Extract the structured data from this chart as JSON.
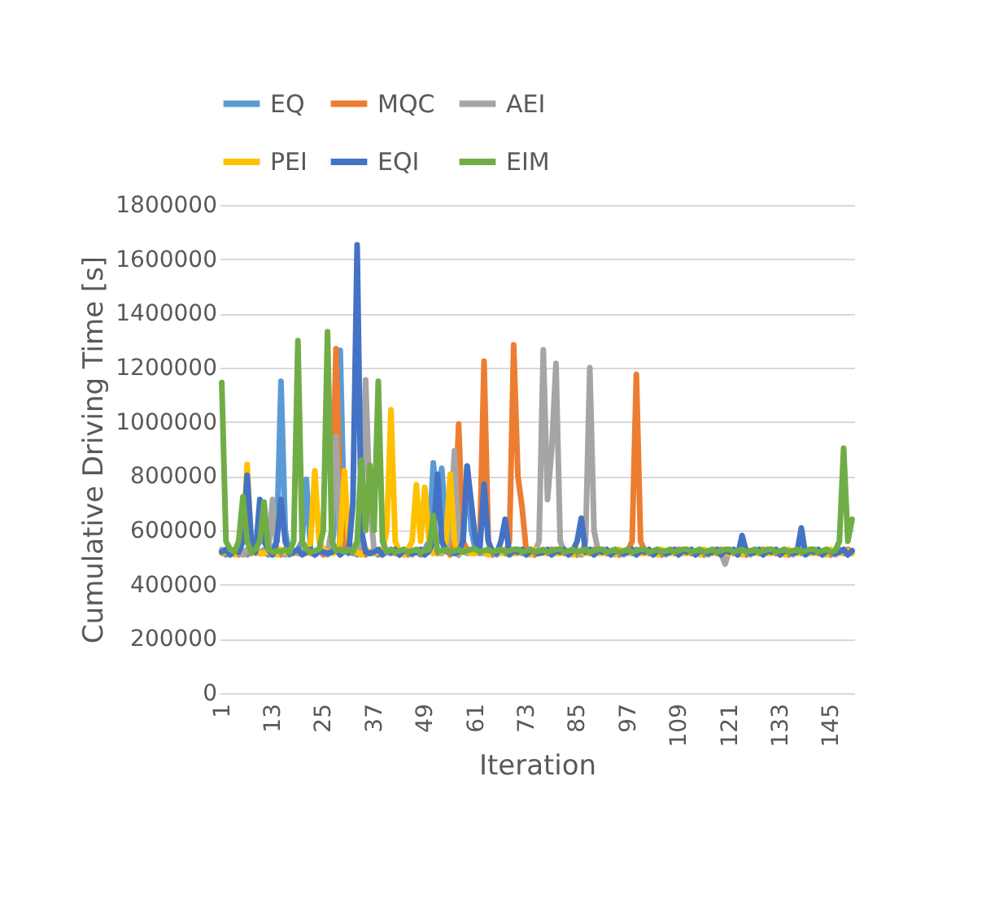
{
  "chart_data": {
    "type": "line",
    "xlabel": "Iteration",
    "ylabel": "Cumulative Driving Time [s]",
    "categories": [
      "1",
      null,
      null,
      null,
      null,
      null,
      null,
      null,
      null,
      null,
      null,
      null,
      "13",
      null,
      null,
      null,
      null,
      null,
      null,
      null,
      null,
      null,
      null,
      null,
      "25",
      null,
      null,
      null,
      null,
      null,
      null,
      null,
      null,
      null,
      null,
      null,
      "37",
      null,
      null,
      null,
      null,
      null,
      null,
      null,
      null,
      null,
      null,
      null,
      "49",
      null,
      null,
      null,
      null,
      null,
      null,
      null,
      null,
      null,
      null,
      null,
      "61",
      null,
      null,
      null,
      null,
      null,
      null,
      null,
      null,
      null,
      null,
      null,
      "73",
      null,
      null,
      null,
      null,
      null,
      null,
      null,
      null,
      null,
      null,
      null,
      "85",
      null,
      null,
      null,
      null,
      null,
      null,
      null,
      null,
      null,
      null,
      null,
      "97",
      null,
      null,
      null,
      null,
      null,
      null,
      null,
      null,
      null,
      null,
      null,
      "109",
      null,
      null,
      null,
      null,
      null,
      null,
      null,
      null,
      null,
      null,
      null,
      "121",
      null,
      null,
      null,
      null,
      null,
      null,
      null,
      null,
      null,
      null,
      null,
      "133",
      null,
      null,
      null,
      null,
      null,
      null,
      null,
      null,
      null,
      null,
      null,
      "145",
      null,
      null,
      null,
      null,
      null
    ],
    "ylim": [
      0,
      1800000
    ],
    "yticks": [
      0,
      200000,
      400000,
      600000,
      800000,
      1000000,
      1200000,
      1400000,
      1600000,
      1800000
    ],
    "grid": "y",
    "legend": "top",
    "marker": "none",
    "line_style": "solid",
    "series": [
      {
        "name": "EQ",
        "color": "#5b9bd5",
        "values": [
          520000,
          510000,
          530000,
          520000,
          515000,
          525000,
          510000,
          520000,
          530000,
          515000,
          520000,
          510000,
          530000,
          560000,
          1150000,
          600000,
          510000,
          520000,
          530000,
          560000,
          788000,
          525000,
          510000,
          520000,
          530000,
          515000,
          520000,
          700000,
          1264000,
          600000,
          515000,
          525000,
          510000,
          520000,
          530000,
          515000,
          520000,
          510000,
          530000,
          520000,
          515000,
          525000,
          510000,
          520000,
          530000,
          515000,
          520000,
          510000,
          530000,
          560000,
          849000,
          700000,
          829000,
          600000,
          515000,
          520000,
          510000,
          540000,
          837000,
          600000,
          525000,
          515000,
          520000,
          530000,
          510000,
          520000,
          525000,
          515000,
          530000,
          520000,
          525000,
          515000,
          520000,
          530000,
          510000,
          520000,
          525000,
          515000,
          530000,
          520000,
          525000,
          515000,
          520000,
          530000,
          510000,
          520000,
          525000,
          515000,
          530000,
          520000,
          525000,
          515000,
          520000,
          530000,
          510000,
          520000,
          525000,
          515000,
          530000,
          520000,
          525000,
          515000,
          520000,
          530000,
          510000,
          520000,
          525000,
          515000,
          530000,
          520000,
          525000,
          515000,
          520000,
          530000,
          510000,
          520000,
          525000,
          515000,
          530000,
          520000,
          525000,
          515000,
          520000,
          530000,
          510000,
          520000,
          525000,
          515000,
          530000,
          520000,
          525000,
          515000,
          520000,
          530000,
          510000,
          520000,
          525000,
          515000,
          530000,
          520000,
          525000,
          515000,
          520000,
          530000,
          510000,
          520000,
          525000,
          515000,
          530000,
          520000
        ]
      },
      {
        "name": "MQC",
        "color": "#ed7d31",
        "values": [
          525000,
          515000,
          520000,
          530000,
          510000,
          520000,
          525000,
          515000,
          530000,
          520000,
          525000,
          515000,
          520000,
          530000,
          510000,
          520000,
          525000,
          515000,
          530000,
          520000,
          525000,
          515000,
          520000,
          530000,
          510000,
          520000,
          600000,
          1270000,
          700000,
          520000,
          525000,
          515000,
          520000,
          530000,
          510000,
          520000,
          525000,
          515000,
          530000,
          520000,
          525000,
          515000,
          520000,
          530000,
          510000,
          520000,
          525000,
          515000,
          530000,
          520000,
          525000,
          515000,
          520000,
          530000,
          510000,
          600000,
          992000,
          560000,
          530000,
          520000,
          525000,
          560000,
          1224000,
          560000,
          510000,
          520000,
          525000,
          515000,
          560000,
          1284000,
          800000,
          684000,
          520000,
          530000,
          510000,
          520000,
          525000,
          515000,
          530000,
          520000,
          525000,
          515000,
          520000,
          530000,
          510000,
          520000,
          525000,
          515000,
          530000,
          520000,
          525000,
          515000,
          520000,
          530000,
          510000,
          520000,
          525000,
          560000,
          1175000,
          560000,
          525000,
          515000,
          520000,
          530000,
          510000,
          520000,
          525000,
          515000,
          530000,
          520000,
          525000,
          515000,
          520000,
          530000,
          510000,
          520000,
          525000,
          515000,
          530000,
          520000,
          525000,
          515000,
          520000,
          530000,
          510000,
          520000,
          525000,
          515000,
          530000,
          520000,
          525000,
          515000,
          520000,
          530000,
          510000,
          520000,
          525000,
          515000,
          530000,
          520000,
          525000,
          515000,
          520000,
          530000,
          510000,
          520000,
          525000,
          515000,
          530000,
          520000
        ]
      },
      {
        "name": "AEI",
        "color": "#a5a5a5",
        "values": [
          530000,
          520000,
          515000,
          525000,
          520000,
          510000,
          530000,
          525000,
          515000,
          520000,
          530000,
          520000,
          714000,
          525000,
          520000,
          510000,
          530000,
          525000,
          515000,
          520000,
          530000,
          520000,
          515000,
          525000,
          520000,
          510000,
          600000,
          946000,
          515000,
          520000,
          530000,
          520000,
          515000,
          600000,
          1155000,
          700000,
          530000,
          525000,
          515000,
          520000,
          530000,
          520000,
          515000,
          525000,
          520000,
          510000,
          530000,
          525000,
          515000,
          520000,
          530000,
          520000,
          515000,
          525000,
          600000,
          893000,
          530000,
          525000,
          515000,
          520000,
          530000,
          520000,
          515000,
          525000,
          520000,
          510000,
          530000,
          525000,
          515000,
          520000,
          530000,
          520000,
          515000,
          525000,
          520000,
          560000,
          1266000,
          714000,
          900000,
          1216000,
          560000,
          520000,
          515000,
          525000,
          520000,
          510000,
          560000,
          1200000,
          600000,
          520000,
          530000,
          520000,
          515000,
          525000,
          520000,
          510000,
          530000,
          525000,
          515000,
          520000,
          530000,
          520000,
          515000,
          525000,
          520000,
          510000,
          530000,
          525000,
          515000,
          520000,
          530000,
          520000,
          515000,
          525000,
          520000,
          510000,
          530000,
          525000,
          515000,
          476000,
          530000,
          520000,
          515000,
          525000,
          520000,
          510000,
          530000,
          525000,
          515000,
          520000,
          530000,
          520000,
          515000,
          525000,
          520000,
          510000,
          530000,
          525000,
          515000,
          520000,
          530000,
          520000,
          515000,
          525000,
          520000,
          510000,
          530000,
          525000,
          515000,
          520000
        ]
      },
      {
        "name": "PEI",
        "color": "#ffc000",
        "values": [
          515000,
          525000,
          520000,
          510000,
          530000,
          560000,
          843000,
          520000,
          525000,
          515000,
          515000,
          525000,
          520000,
          510000,
          530000,
          520000,
          515000,
          520000,
          525000,
          515000,
          515000,
          560000,
          820000,
          560000,
          530000,
          520000,
          515000,
          520000,
          560000,
          820000,
          560000,
          525000,
          520000,
          510000,
          530000,
          520000,
          515000,
          520000,
          525000,
          600000,
          1045000,
          560000,
          520000,
          510000,
          530000,
          560000,
          768000,
          560000,
          758000,
          560000,
          515000,
          525000,
          520000,
          560000,
          807000,
          560000,
          515000,
          520000,
          525000,
          515000,
          515000,
          525000,
          520000,
          510000,
          530000,
          520000,
          515000,
          520000,
          525000,
          515000,
          515000,
          525000,
          520000,
          510000,
          530000,
          520000,
          515000,
          520000,
          525000,
          515000,
          515000,
          525000,
          520000,
          510000,
          530000,
          520000,
          515000,
          520000,
          525000,
          515000,
          515000,
          525000,
          520000,
          510000,
          530000,
          520000,
          515000,
          520000,
          525000,
          515000,
          515000,
          525000,
          520000,
          510000,
          530000,
          520000,
          515000,
          520000,
          525000,
          515000,
          515000,
          525000,
          520000,
          510000,
          530000,
          520000,
          515000,
          520000,
          525000,
          515000,
          515000,
          525000,
          520000,
          510000,
          530000,
          520000,
          515000,
          520000,
          525000,
          515000,
          515000,
          525000,
          520000,
          510000,
          530000,
          520000,
          515000,
          520000,
          525000,
          515000,
          515000,
          525000,
          520000,
          510000,
          530000,
          520000,
          515000,
          520000,
          525000,
          515000
        ]
      },
      {
        "name": "EQI",
        "color": "#4472c4",
        "values": [
          520000,
          530000,
          510000,
          525000,
          520000,
          560000,
          803000,
          560000,
          520000,
          714000,
          560000,
          530000,
          510000,
          560000,
          714000,
          560000,
          515000,
          520000,
          530000,
          510000,
          520000,
          530000,
          510000,
          525000,
          520000,
          515000,
          520000,
          530000,
          510000,
          525000,
          520000,
          700000,
          1653000,
          600000,
          520000,
          515000,
          520000,
          530000,
          510000,
          525000,
          520000,
          530000,
          510000,
          525000,
          520000,
          515000,
          520000,
          530000,
          510000,
          525000,
          560000,
          807000,
          560000,
          525000,
          520000,
          515000,
          520000,
          560000,
          837000,
          700000,
          560000,
          530000,
          770000,
          560000,
          520000,
          515000,
          560000,
          641000,
          510000,
          525000,
          520000,
          530000,
          510000,
          525000,
          520000,
          515000,
          520000,
          530000,
          510000,
          525000,
          520000,
          530000,
          510000,
          525000,
          560000,
          645000,
          520000,
          530000,
          510000,
          525000,
          520000,
          530000,
          510000,
          525000,
          520000,
          515000,
          520000,
          530000,
          510000,
          525000,
          520000,
          530000,
          510000,
          525000,
          520000,
          515000,
          520000,
          530000,
          510000,
          525000,
          520000,
          530000,
          510000,
          525000,
          520000,
          515000,
          520000,
          530000,
          510000,
          525000,
          520000,
          530000,
          510000,
          581000,
          520000,
          515000,
          520000,
          530000,
          510000,
          525000,
          520000,
          530000,
          510000,
          525000,
          520000,
          515000,
          520000,
          609000,
          510000,
          525000,
          520000,
          530000,
          510000,
          525000,
          520000,
          515000,
          520000,
          530000,
          510000,
          525000
        ]
      },
      {
        "name": "EIM",
        "color": "#70ad47",
        "values": [
          1145000,
          560000,
          530000,
          520000,
          560000,
          724000,
          560000,
          520000,
          530000,
          560000,
          704000,
          530000,
          520000,
          525000,
          520000,
          530000,
          520000,
          560000,
          1300000,
          560000,
          530000,
          520000,
          525000,
          530000,
          600000,
          1333000,
          560000,
          525000,
          530000,
          520000,
          530000,
          520000,
          560000,
          859000,
          600000,
          840000,
          600000,
          1150000,
          560000,
          520000,
          530000,
          520000,
          525000,
          530000,
          520000,
          525000,
          530000,
          520000,
          525000,
          530000,
          655000,
          520000,
          525000,
          530000,
          520000,
          525000,
          530000,
          520000,
          525000,
          530000,
          530000,
          520000,
          525000,
          530000,
          520000,
          525000,
          530000,
          520000,
          525000,
          530000,
          530000,
          520000,
          525000,
          530000,
          520000,
          525000,
          530000,
          520000,
          525000,
          530000,
          530000,
          520000,
          525000,
          530000,
          520000,
          525000,
          530000,
          520000,
          525000,
          530000,
          530000,
          520000,
          525000,
          530000,
          520000,
          525000,
          530000,
          520000,
          525000,
          530000,
          530000,
          520000,
          525000,
          530000,
          520000,
          525000,
          530000,
          520000,
          525000,
          530000,
          530000,
          520000,
          525000,
          530000,
          520000,
          525000,
          530000,
          520000,
          525000,
          530000,
          530000,
          520000,
          525000,
          530000,
          520000,
          525000,
          530000,
          520000,
          525000,
          530000,
          530000,
          520000,
          525000,
          530000,
          520000,
          525000,
          530000,
          520000,
          525000,
          530000,
          530000,
          520000,
          525000,
          530000,
          520000,
          525000,
          560000,
          903000,
          560000,
          641000
        ]
      }
    ]
  }
}
